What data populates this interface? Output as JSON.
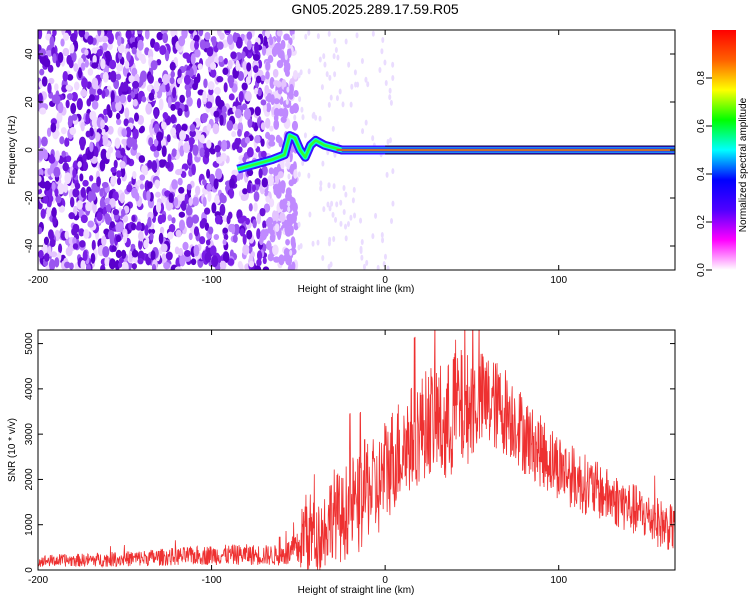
{
  "title": "GN05.2025.289.17.59.R05",
  "chart_data": [
    {
      "type": "heatmap",
      "xlabel": "Height of straight line (km)",
      "ylabel": "Frequency (Hz)",
      "xlim": [
        -200,
        167
      ],
      "ylim": [
        -50,
        50
      ],
      "xticks": [
        -200,
        -100,
        0,
        100
      ],
      "yticks": [
        -40,
        -20,
        0,
        20,
        40
      ],
      "grid": false,
      "colorbar": {
        "label": "Normalized spectral amplitude",
        "range": [
          0,
          1
        ],
        "ticks": [
          0.0,
          0.2,
          0.4,
          0.6,
          0.8
        ],
        "palette": [
          "#ffffff",
          "#ff00ff",
          "#5000ff",
          "#0000ff",
          "#00ffff",
          "#00ff00",
          "#ffff00",
          "#ff6000",
          "#ff0000"
        ]
      },
      "features": {
        "noise_region_x": [
          -200,
          -57
        ],
        "noise_color": "#7a1fe6",
        "signal_line_frequency": 0,
        "signal_track": [
          [
            -85,
            -8
          ],
          [
            -75,
            -6
          ],
          [
            -65,
            -4
          ],
          [
            -58,
            -2
          ],
          [
            -55,
            6
          ],
          [
            -52,
            5
          ],
          [
            -49,
            0
          ],
          [
            -46,
            -3
          ],
          [
            -43,
            2
          ],
          [
            -40,
            4
          ],
          [
            -35,
            2
          ],
          [
            -30,
            1
          ],
          [
            -25,
            0
          ],
          [
            0,
            0
          ],
          [
            167,
            0
          ]
        ],
        "strong_line_color": "#e83a2a"
      }
    },
    {
      "type": "line",
      "xlabel": "Height of straight line (km)",
      "ylabel": "SNR (10 * v/v)",
      "xlim": [
        -200,
        167
      ],
      "ylim": [
        0,
        5300
      ],
      "xticks": [
        -200,
        -100,
        0,
        100
      ],
      "yticks": [
        0,
        1000,
        2000,
        3000,
        4000,
        5000
      ],
      "grid": false,
      "series_color": "#ee3030",
      "envelope": {
        "x": [
          -200,
          -170,
          -140,
          -120,
          -100,
          -80,
          -70,
          -60,
          -50,
          -45,
          -40,
          -35,
          -30,
          -25,
          -20,
          -15,
          -10,
          -5,
          0,
          5,
          10,
          15,
          20,
          25,
          30,
          35,
          40,
          45,
          50,
          55,
          60,
          65,
          70,
          75,
          80,
          85,
          90,
          100,
          110,
          120,
          130,
          140,
          150,
          160,
          167
        ],
        "mean": [
          200,
          220,
          260,
          300,
          330,
          340,
          330,
          320,
          450,
          1000,
          650,
          900,
          1300,
          1100,
          1500,
          1400,
          1900,
          1700,
          2200,
          2500,
          2700,
          2900,
          3100,
          3300,
          3400,
          3000,
          3700,
          3500,
          3650,
          3750,
          3700,
          3600,
          3500,
          3300,
          3000,
          2800,
          2600,
          2300,
          2000,
          1800,
          1600,
          1400,
          1200,
          1000,
          900
        ],
        "spread": [
          130,
          150,
          180,
          200,
          220,
          230,
          230,
          230,
          400,
          1200,
          700,
          900,
          1000,
          1000,
          1100,
          1100,
          1200,
          1100,
          1200,
          1200,
          1200,
          1200,
          1200,
          1200,
          1300,
          1400,
          1500,
          1300,
          1200,
          1100,
          1100,
          1000,
          1000,
          900,
          900,
          800,
          800,
          750,
          700,
          650,
          600,
          600,
          550,
          550,
          500
        ]
      }
    }
  ]
}
